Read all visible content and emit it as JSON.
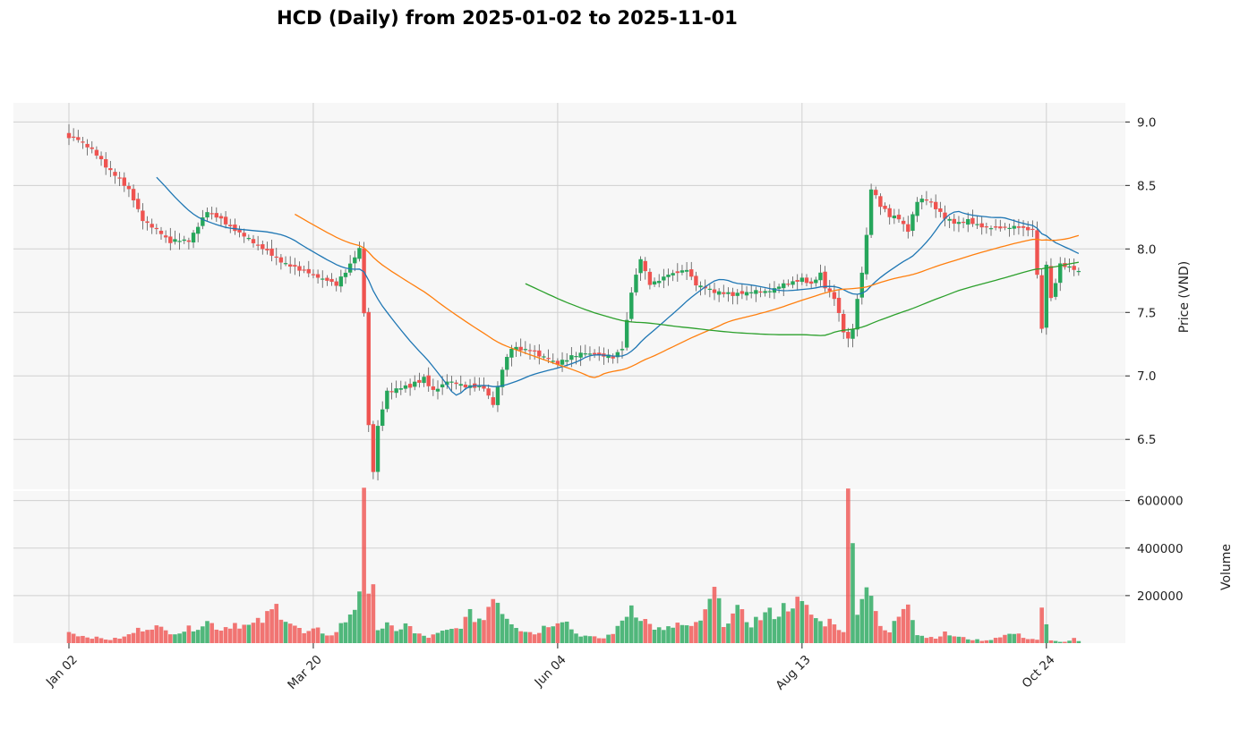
{
  "chart_data": {
    "type": "candlestick",
    "title": "HCD (Daily) from 2025-01-02 to 2025-11-01",
    "price_panel": {
      "ylabel": "Price (VND)",
      "ylim": [
        6.1,
        9.08
      ],
      "yticks": [
        "6.5",
        "7.0",
        "7.5",
        "8.0",
        "8.5",
        "9.0"
      ],
      "up_color": "#26a65b",
      "down_color": "#ef5350"
    },
    "volume_panel": {
      "ylabel": "Volume",
      "ylim": [
        0,
        640000
      ],
      "yticks": [
        "200000",
        "400000",
        "600000"
      ]
    },
    "x_ticks": [
      {
        "label": "Jan 02",
        "index": 0
      },
      {
        "label": "Mar 20",
        "index": 53
      },
      {
        "label": "Jun 04",
        "index": 106
      },
      {
        "label": "Aug 13",
        "index": 159
      },
      {
        "label": "Oct 24",
        "index": 212
      }
    ],
    "grid": true,
    "legend": "none",
    "anchors": {
      "close": [
        [
          0,
          8.88
        ],
        [
          2,
          8.86
        ],
        [
          5,
          8.78
        ],
        [
          8,
          8.65
        ],
        [
          10,
          8.58
        ],
        [
          13,
          8.47
        ],
        [
          16,
          8.23
        ],
        [
          19,
          8.15
        ],
        [
          22,
          8.06
        ],
        [
          26,
          8.07
        ],
        [
          28,
          8.18
        ],
        [
          30,
          8.3
        ],
        [
          34,
          8.2
        ],
        [
          38,
          8.1
        ],
        [
          42,
          8.0
        ],
        [
          46,
          7.9
        ],
        [
          50,
          7.84
        ],
        [
          54,
          7.78
        ],
        [
          58,
          7.72
        ],
        [
          61,
          7.88
        ],
        [
          63,
          8.0
        ],
        [
          64,
          7.5
        ],
        [
          65,
          6.6
        ],
        [
          66,
          6.25
        ],
        [
          67,
          6.6
        ],
        [
          69,
          6.88
        ],
        [
          71,
          6.9
        ],
        [
          74,
          6.92
        ],
        [
          77,
          6.98
        ],
        [
          79,
          6.88
        ],
        [
          82,
          6.96
        ],
        [
          86,
          6.92
        ],
        [
          90,
          6.9
        ],
        [
          92,
          6.78
        ],
        [
          94,
          7.05
        ],
        [
          96,
          7.22
        ],
        [
          100,
          7.2
        ],
        [
          103,
          7.15
        ],
        [
          106,
          7.1
        ],
        [
          109,
          7.15
        ],
        [
          112,
          7.18
        ],
        [
          118,
          7.15
        ],
        [
          120,
          7.22
        ],
        [
          122,
          7.66
        ],
        [
          124,
          7.92
        ],
        [
          126,
          7.72
        ],
        [
          130,
          7.8
        ],
        [
          134,
          7.84
        ],
        [
          136,
          7.72
        ],
        [
          140,
          7.66
        ],
        [
          144,
          7.64
        ],
        [
          148,
          7.66
        ],
        [
          152,
          7.67
        ],
        [
          155,
          7.72
        ],
        [
          157,
          7.74
        ],
        [
          159,
          7.76
        ],
        [
          161,
          7.72
        ],
        [
          163,
          7.8
        ],
        [
          164,
          7.7
        ],
        [
          166,
          7.62
        ],
        [
          168,
          7.35
        ],
        [
          169,
          7.28
        ],
        [
          170,
          7.38
        ],
        [
          172,
          7.82
        ],
        [
          173,
          8.1
        ],
        [
          174,
          8.48
        ],
        [
          176,
          8.34
        ],
        [
          178,
          8.26
        ],
        [
          180,
          8.24
        ],
        [
          182,
          8.15
        ],
        [
          184,
          8.38
        ],
        [
          186,
          8.4
        ],
        [
          188,
          8.32
        ],
        [
          190,
          8.25
        ],
        [
          192,
          8.2
        ],
        [
          195,
          8.22
        ],
        [
          198,
          8.18
        ],
        [
          201,
          8.16
        ],
        [
          204,
          8.18
        ],
        [
          207,
          8.16
        ],
        [
          209,
          8.14
        ],
        [
          210,
          7.8
        ],
        [
          211,
          7.36
        ],
        [
          212,
          7.88
        ],
        [
          213,
          7.6
        ],
        [
          215,
          7.88
        ],
        [
          217,
          7.86
        ],
        [
          218,
          7.84
        ],
        [
          219,
          7.82
        ]
      ],
      "volume": [
        [
          0,
          48000
        ],
        [
          3,
          30000
        ],
        [
          6,
          22000
        ],
        [
          9,
          15000
        ],
        [
          12,
          25000
        ],
        [
          15,
          55000
        ],
        [
          18,
          75000
        ],
        [
          21,
          50000
        ],
        [
          24,
          48000
        ],
        [
          27,
          65000
        ],
        [
          30,
          90000
        ],
        [
          33,
          60000
        ],
        [
          36,
          85000
        ],
        [
          39,
          70000
        ],
        [
          42,
          95000
        ],
        [
          45,
          150000
        ],
        [
          48,
          90000
        ],
        [
          51,
          40000
        ],
        [
          54,
          55000
        ],
        [
          57,
          30000
        ],
        [
          60,
          95000
        ],
        [
          62,
          160000
        ],
        [
          63,
          240000
        ],
        [
          64,
          540000
        ],
        [
          65,
          170000
        ],
        [
          66,
          330000
        ],
        [
          67,
          60000
        ],
        [
          69,
          75000
        ],
        [
          71,
          45000
        ],
        [
          73,
          90000
        ],
        [
          75,
          40000
        ],
        [
          78,
          25000
        ],
        [
          81,
          45000
        ],
        [
          84,
          60000
        ],
        [
          87,
          115000
        ],
        [
          90,
          100000
        ],
        [
          92,
          225000
        ],
        [
          94,
          140000
        ],
        [
          96,
          95000
        ],
        [
          98,
          60000
        ],
        [
          101,
          40000
        ],
        [
          104,
          80000
        ],
        [
          107,
          110000
        ],
        [
          110,
          40000
        ],
        [
          113,
          25000
        ],
        [
          116,
          20000
        ],
        [
          119,
          60000
        ],
        [
          122,
          160000
        ],
        [
          124,
          115000
        ],
        [
          126,
          75000
        ],
        [
          129,
          50000
        ],
        [
          132,
          80000
        ],
        [
          135,
          60000
        ],
        [
          138,
          120000
        ],
        [
          140,
          215000
        ],
        [
          142,
          90000
        ],
        [
          145,
          130000
        ],
        [
          148,
          85000
        ],
        [
          151,
          120000
        ],
        [
          154,
          130000
        ],
        [
          157,
          180000
        ],
        [
          160,
          140000
        ],
        [
          163,
          85000
        ],
        [
          166,
          95000
        ],
        [
          168,
          40000
        ],
        [
          169,
          600000
        ],
        [
          170,
          560000
        ],
        [
          171,
          140000
        ],
        [
          172,
          175000
        ],
        [
          173,
          290000
        ],
        [
          174,
          220000
        ],
        [
          176,
          60000
        ],
        [
          178,
          45000
        ],
        [
          180,
          120000
        ],
        [
          182,
          200000
        ],
        [
          184,
          40000
        ],
        [
          186,
          25000
        ],
        [
          188,
          25000
        ],
        [
          190,
          40000
        ],
        [
          193,
          25000
        ],
        [
          196,
          15000
        ],
        [
          199,
          10000
        ],
        [
          202,
          30000
        ],
        [
          205,
          40000
        ],
        [
          208,
          20000
        ],
        [
          210,
          15000
        ],
        [
          211,
          130000
        ],
        [
          213,
          10000
        ],
        [
          216,
          5000
        ],
        [
          218,
          18000
        ],
        [
          219,
          8000
        ]
      ]
    }
  }
}
